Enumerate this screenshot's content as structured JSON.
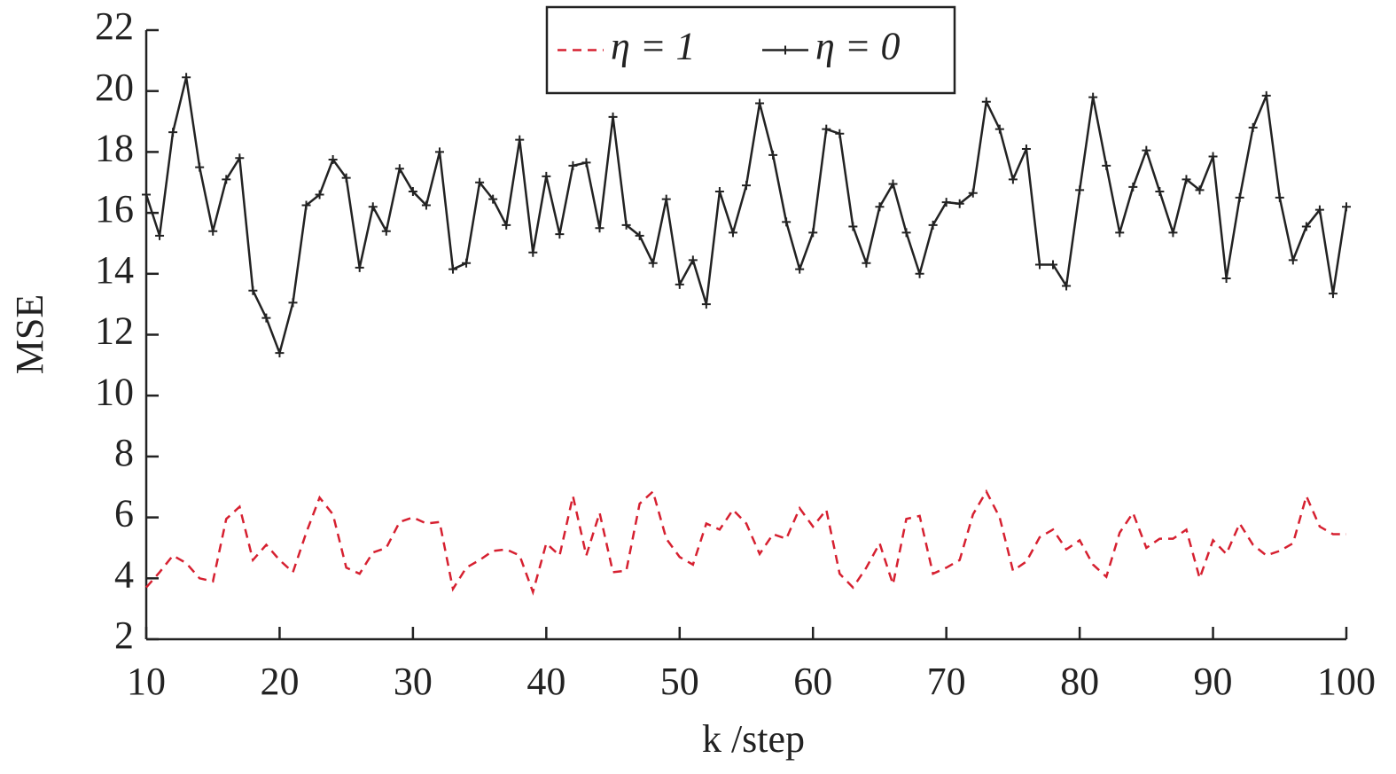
{
  "chart_data": {
    "type": "line",
    "xlabel": "k /step",
    "ylabel": "MSE",
    "x": [
      10,
      11,
      12,
      13,
      14,
      15,
      16,
      17,
      18,
      19,
      20,
      21,
      22,
      23,
      24,
      25,
      26,
      27,
      28,
      29,
      30,
      31,
      32,
      33,
      34,
      35,
      36,
      37,
      38,
      39,
      40,
      41,
      42,
      43,
      44,
      45,
      46,
      47,
      48,
      49,
      50,
      51,
      52,
      53,
      54,
      55,
      56,
      57,
      58,
      59,
      60,
      61,
      62,
      63,
      64,
      65,
      66,
      67,
      68,
      69,
      70,
      71,
      72,
      73,
      74,
      75,
      76,
      77,
      78,
      79,
      80,
      81,
      82,
      83,
      84,
      85,
      86,
      87,
      88,
      89,
      90,
      91,
      92,
      93,
      94,
      95,
      96,
      97,
      98,
      99,
      100
    ],
    "series": [
      {
        "name": "η = 1",
        "color": "#d62030",
        "dash": true,
        "marker": false,
        "values": [
          3.7,
          4.2,
          4.75,
          4.5,
          4.0,
          3.9,
          5.95,
          6.35,
          4.6,
          5.1,
          4.6,
          4.2,
          5.5,
          6.65,
          6.1,
          4.35,
          4.15,
          4.85,
          5.0,
          5.85,
          6.0,
          5.8,
          5.85,
          3.65,
          4.35,
          4.6,
          4.9,
          4.95,
          4.75,
          3.55,
          5.15,
          4.75,
          6.7,
          4.75,
          6.15,
          4.2,
          4.25,
          6.45,
          6.85,
          5.3,
          4.7,
          4.45,
          5.8,
          5.6,
          6.25,
          5.8,
          4.8,
          5.45,
          5.3,
          6.3,
          5.7,
          6.25,
          4.15,
          3.7,
          4.35,
          5.15,
          3.8,
          5.95,
          6.05,
          4.15,
          4.35,
          4.6,
          6.1,
          6.85,
          6.0,
          4.25,
          4.55,
          5.35,
          5.6,
          4.95,
          5.25,
          4.45,
          4.05,
          5.5,
          6.15,
          5.0,
          5.3,
          5.3,
          5.6,
          4.0,
          5.25,
          4.8,
          5.8,
          5.1,
          4.75,
          4.9,
          5.15,
          6.7,
          5.7,
          5.45,
          5.45
        ]
      },
      {
        "name": "η = 0",
        "color": "#222222",
        "dash": false,
        "marker": true,
        "values": [
          16.6,
          15.25,
          18.65,
          20.45,
          17.5,
          15.4,
          17.1,
          17.8,
          13.45,
          12.55,
          11.4,
          13.05,
          16.25,
          16.6,
          17.75,
          17.15,
          14.2,
          16.2,
          15.4,
          17.45,
          16.7,
          16.25,
          18.0,
          14.15,
          14.35,
          17.0,
          16.45,
          15.6,
          18.4,
          14.7,
          17.2,
          15.3,
          17.55,
          17.65,
          15.5,
          19.15,
          15.6,
          15.25,
          14.35,
          16.45,
          13.65,
          14.45,
          13.0,
          16.7,
          15.35,
          16.9,
          19.6,
          17.9,
          15.7,
          14.15,
          15.35,
          18.75,
          18.6,
          15.55,
          14.35,
          16.2,
          16.95,
          15.35,
          14.0,
          15.6,
          16.35,
          16.3,
          16.65,
          19.65,
          18.75,
          17.1,
          18.1,
          14.3,
          14.3,
          13.6,
          16.75,
          19.8,
          17.55,
          15.35,
          16.85,
          18.05,
          16.7,
          15.35,
          17.1,
          16.75,
          17.85,
          13.85,
          16.5,
          18.8,
          19.85,
          16.5,
          14.45,
          15.55,
          16.1,
          13.35,
          16.2
        ]
      }
    ],
    "xlim": [
      10,
      100
    ],
    "xticks": [
      10,
      20,
      30,
      40,
      50,
      60,
      70,
      80,
      90,
      100
    ],
    "ylim": [
      2,
      22
    ],
    "yticks": [
      2,
      4,
      6,
      8,
      10,
      12,
      14,
      16,
      18,
      20,
      22
    ],
    "legend": "top"
  }
}
